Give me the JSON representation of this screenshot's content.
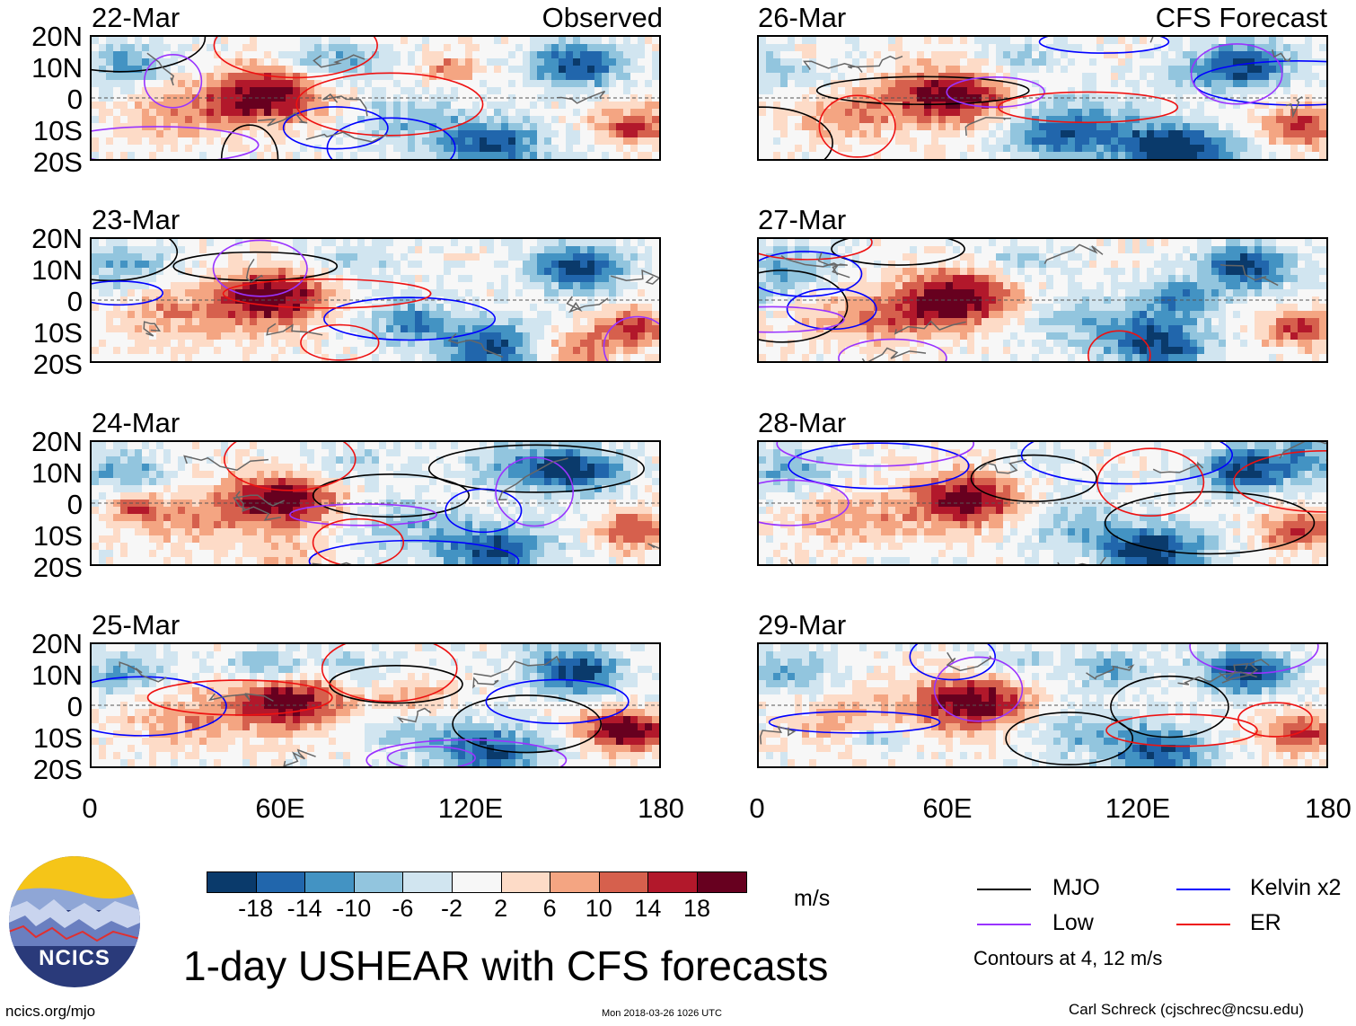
{
  "panels": [
    {
      "date": "22-Mar",
      "tag": "Observed"
    },
    {
      "date": "23-Mar",
      "tag": ""
    },
    {
      "date": "24-Mar",
      "tag": ""
    },
    {
      "date": "25-Mar",
      "tag": ""
    },
    {
      "date": "26-Mar",
      "tag": "CFS Forecast"
    },
    {
      "date": "27-Mar",
      "tag": ""
    },
    {
      "date": "28-Mar",
      "tag": ""
    },
    {
      "date": "29-Mar",
      "tag": ""
    }
  ],
  "y_axis_labels": [
    "20N",
    "10N",
    "0",
    "10S",
    "20S"
  ],
  "x_axis_labels": [
    "0",
    "60E",
    "120E",
    "180"
  ],
  "chart_data": {
    "type": "heatmap",
    "title": "1-day USHEAR with CFS forecasts",
    "variable": "USHEAR",
    "units": "m/s",
    "x_range": [
      0,
      180
    ],
    "y_range": [
      -20,
      20
    ],
    "colorbar": {
      "ticks": [
        -18,
        -14,
        -10,
        -6,
        -2,
        2,
        6,
        10,
        14,
        18
      ],
      "tick_labels": [
        "-18",
        "-14",
        "-10",
        "-6",
        "-2",
        "2",
        "6",
        "10",
        "14",
        "18"
      ],
      "colors": [
        "#0a3a6b",
        "#2166ac",
        "#4393c3",
        "#92c5de",
        "#d1e5f0",
        "#f7f7f7",
        "#fddbc7",
        "#f4a582",
        "#d6604d",
        "#b2182b",
        "#67001f"
      ]
    },
    "legend": [
      {
        "label": "MJO",
        "color": "#000000"
      },
      {
        "label": "Kelvin x2",
        "color": "#0000ff"
      },
      {
        "label": "Low",
        "color": "#9933ff"
      },
      {
        "label": "ER",
        "color": "#ee1111"
      }
    ],
    "contour_note": "Contours at 4, 12 m/s"
  },
  "logo_text": "NCICS",
  "footer": {
    "left": "ncics.org/mjo",
    "middle": "Mon 2018-03-26 1026 UTC",
    "right": "Carl Schreck (cjschrec@ncsu.edu)"
  }
}
